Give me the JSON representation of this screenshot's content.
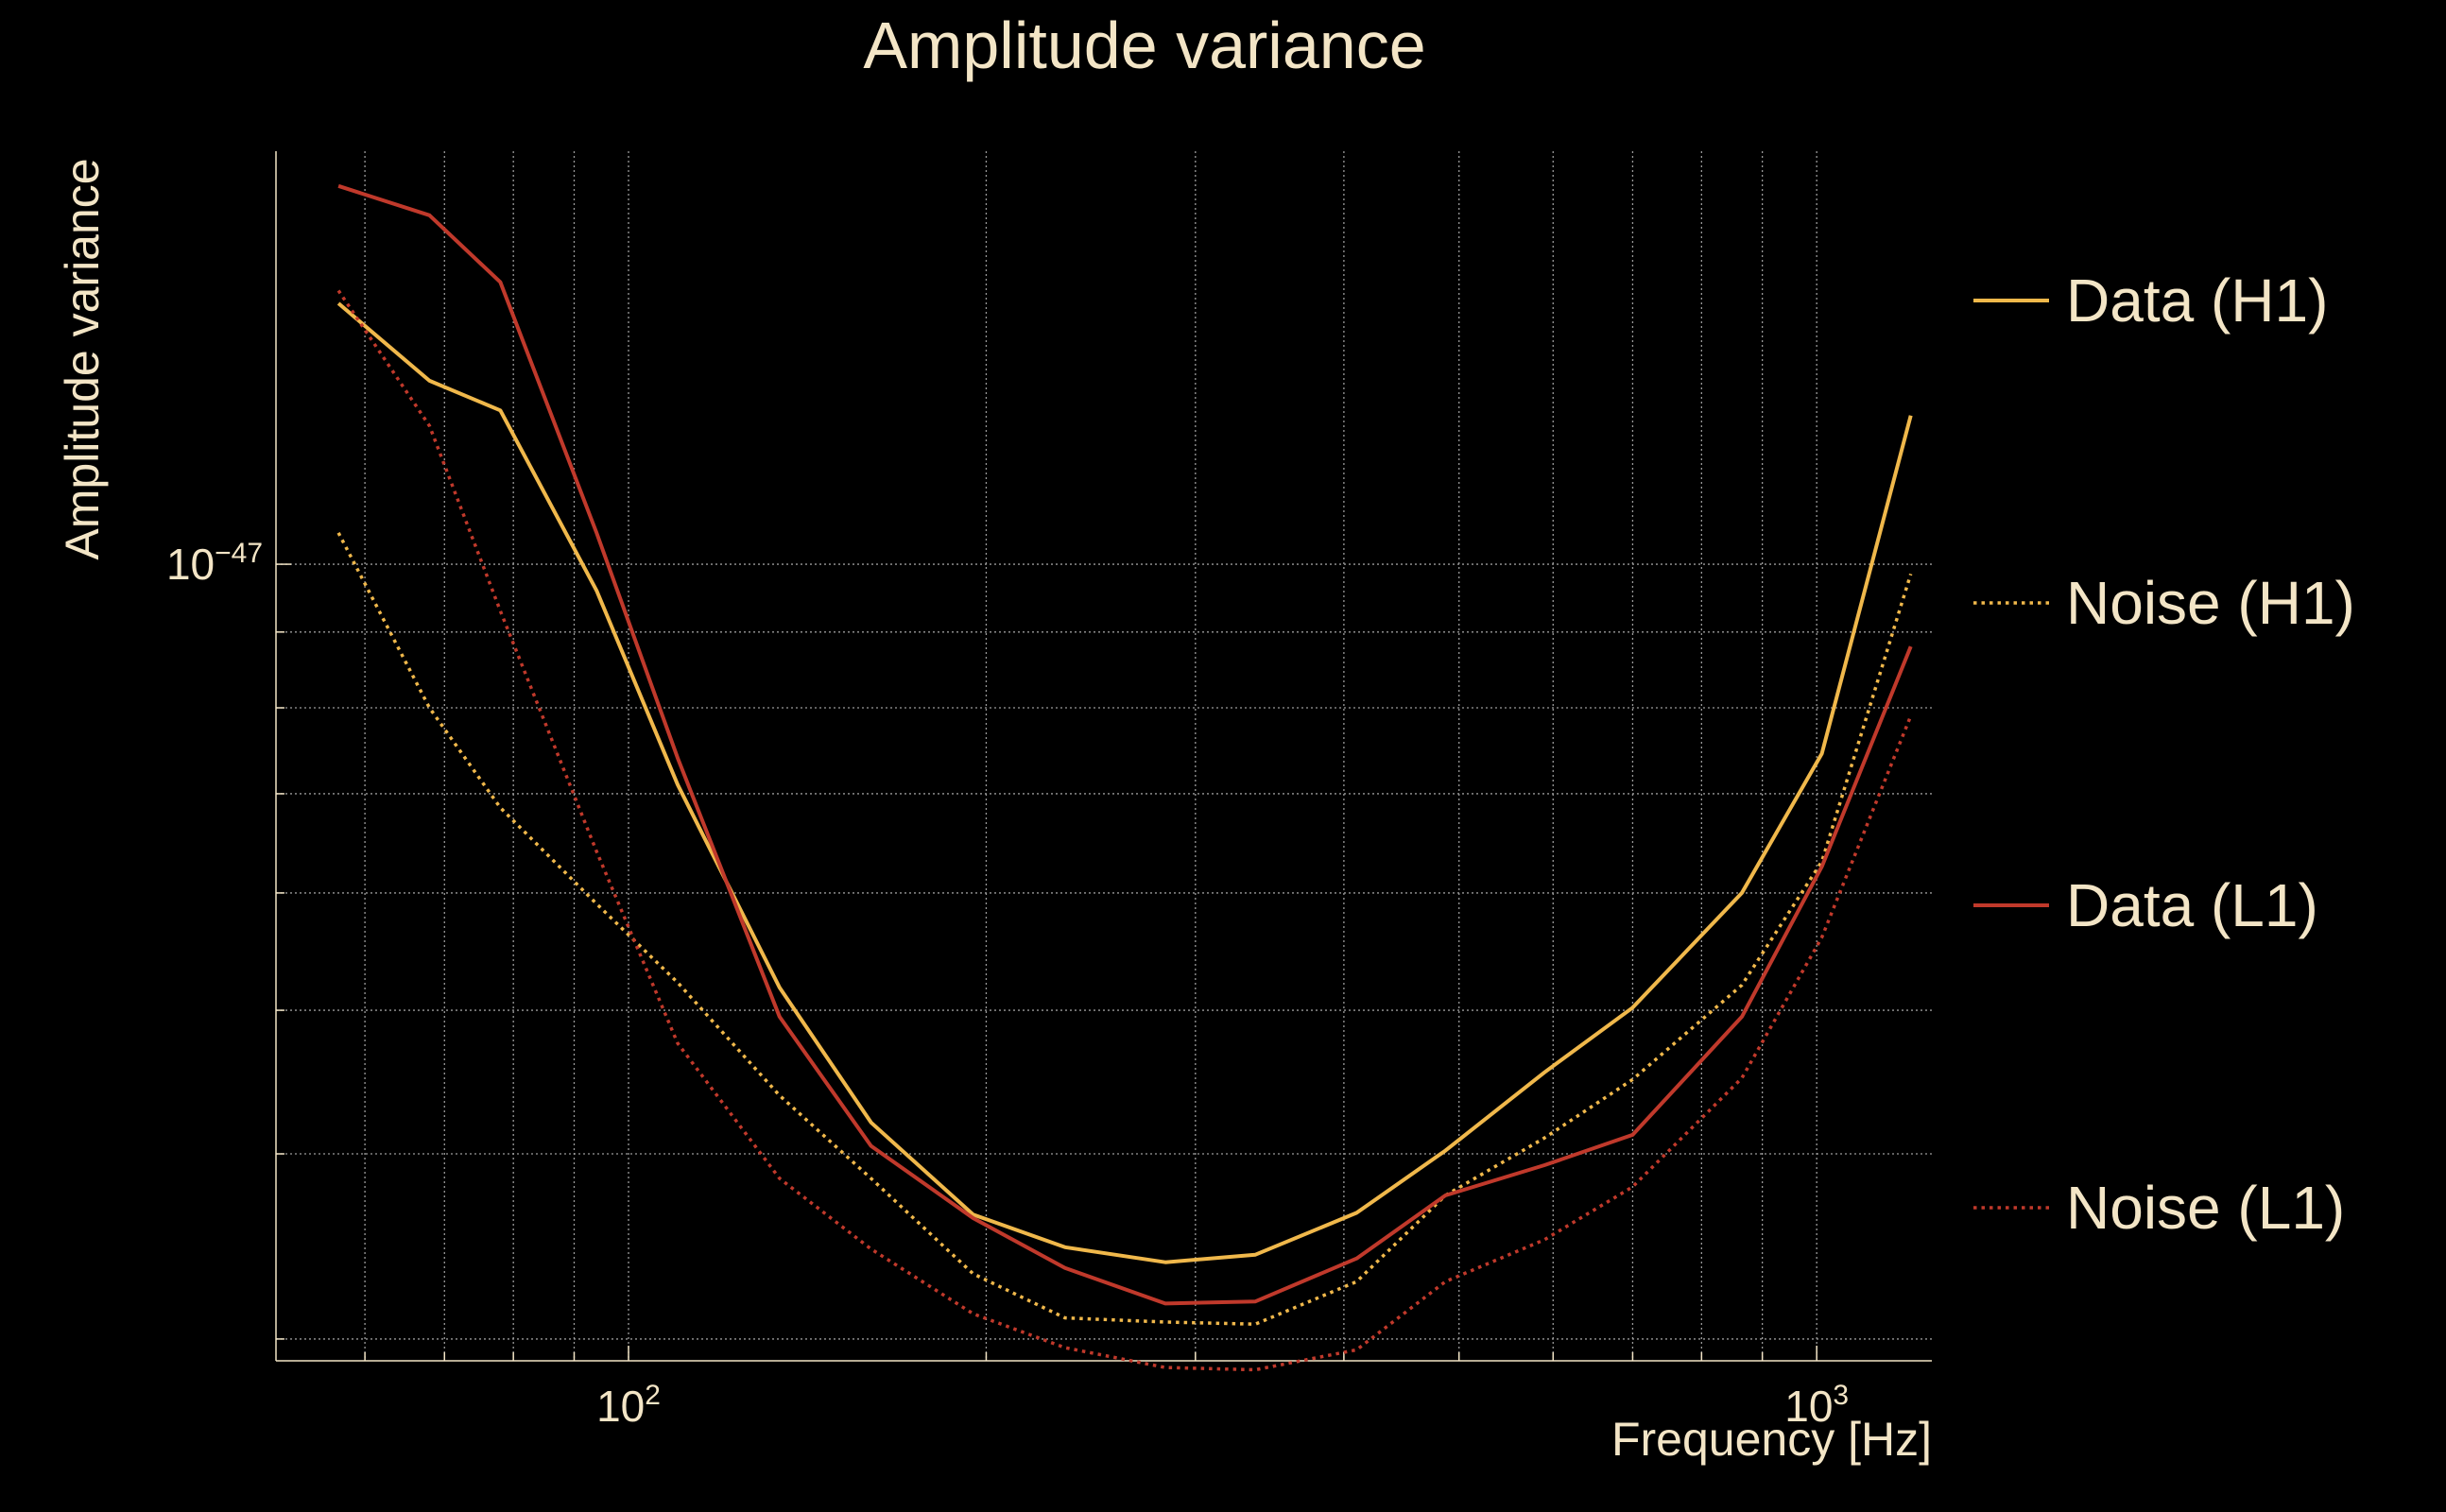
{
  "chart_data": {
    "type": "line",
    "title": "Amplitude variance",
    "xlabel": "Frequency [Hz]",
    "ylabel": "Amplitude variance",
    "xscale": "log",
    "yscale": "log",
    "xlim": [
      50.5,
      1250
    ],
    "ylim": [
      2.9e-48,
      1.9e-47
    ],
    "x_ticks": [
      {
        "value": 100,
        "base": "10",
        "exp": "2"
      },
      {
        "value": 1000,
        "base": "10",
        "exp": "3"
      }
    ],
    "y_ticks": [
      {
        "value": 1e-47,
        "base": "10",
        "exp": "−47"
      }
    ],
    "grid": true,
    "legend_position": "right",
    "x": [
      57,
      68,
      78,
      94,
      110,
      134,
      160,
      195,
      233,
      283,
      337,
      410,
      487,
      590,
      700,
      865,
      1010,
      1200
    ],
    "series": [
      {
        "name": "Data (H1)",
        "color": "#f0b84b",
        "dash": "solid",
        "values": [
          1.5e-47,
          1.33e-47,
          1.27e-47,
          9.6e-48,
          7.1e-48,
          5.18e-48,
          4.2e-48,
          3.64e-48,
          3.46e-48,
          3.38e-48,
          3.42e-48,
          3.65e-48,
          4.02e-48,
          4.54e-48,
          5.02e-48,
          6e-48,
          7.45e-48,
          1.26e-47
        ]
      },
      {
        "name": "Noise (H1)",
        "color": "#f0b84b",
        "dash": "dotted",
        "values": [
          1.05e-47,
          8e-48,
          6.85e-48,
          5.9e-48,
          5.22e-48,
          4.38e-48,
          3.85e-48,
          3.32e-48,
          3.1e-48,
          3.08e-48,
          3.07e-48,
          3.28e-48,
          3.75e-48,
          4.1e-48,
          4.49e-48,
          5.2e-48,
          6.3e-48,
          9.85e-48
        ]
      },
      {
        "name": "Data (L1)",
        "color": "#c0392b",
        "dash": "solid",
        "values": [
          1.8e-47,
          1.72e-47,
          1.55e-47,
          1.05e-47,
          7.4e-48,
          4.95e-48,
          4.05e-48,
          3.62e-48,
          3.35e-48,
          3.17e-48,
          3.18e-48,
          3.4e-48,
          3.75e-48,
          3.93e-48,
          4.12e-48,
          4.95e-48,
          6.25e-48,
          8.8e-48
        ]
      },
      {
        "name": "Noise (L1)",
        "color": "#c0392b",
        "dash": "dotted",
        "values": [
          1.53e-47,
          1.24e-47,
          9.3e-48,
          6.4e-48,
          4.75e-48,
          3.85e-48,
          3.45e-48,
          3.12e-48,
          2.96e-48,
          2.87e-48,
          2.86e-48,
          2.95e-48,
          3.28e-48,
          3.5e-48,
          3.8e-48,
          4.5e-48,
          5.6e-48,
          7.9e-48
        ]
      }
    ]
  }
}
